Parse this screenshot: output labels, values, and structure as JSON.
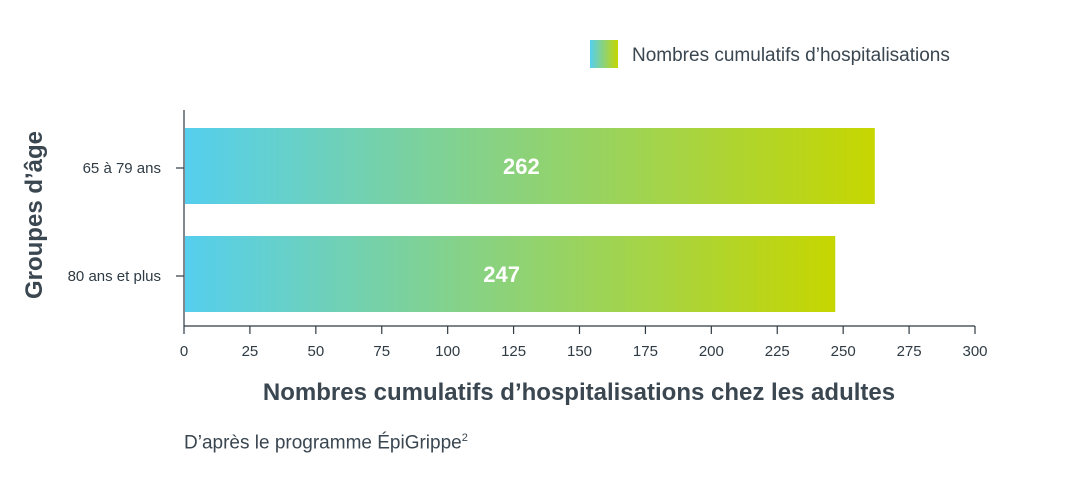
{
  "chart_data": {
    "type": "bar",
    "orientation": "horizontal",
    "categories": [
      "65 à 79 ans",
      "80 ans et plus"
    ],
    "series": [
      {
        "name": "Nombres cumulatifs d’hospitalisations",
        "values": [
          262,
          247
        ]
      }
    ],
    "data_labels": [
      "262",
      "247"
    ],
    "xlabel": "Nombres cumulatifs d’hospitalisations chez les adultes",
    "ylabel": "Groupes d’âge",
    "xlim": [
      0,
      300
    ],
    "xticks": [
      0,
      25,
      50,
      75,
      100,
      125,
      150,
      175,
      200,
      225,
      250,
      275,
      300
    ],
    "grid": false,
    "legend_position": "top-right",
    "colors": {
      "gradient_start": "#55cfee",
      "gradient_end": "#c6d600"
    }
  },
  "source": {
    "text": "D’après le programme ÉpiGrippe",
    "superscript": "2"
  }
}
